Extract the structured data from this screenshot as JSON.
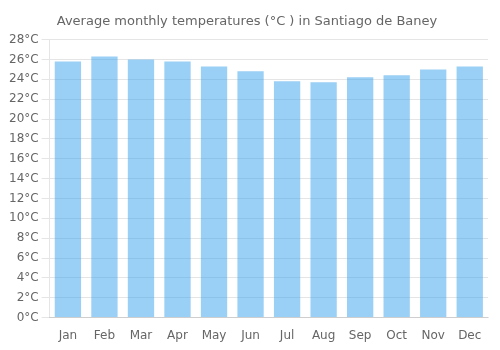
{
  "chart_data": {
    "type": "bar",
    "title": "Average monthly temperatures (°C ) in Santiago de Baney",
    "categories": [
      "Jan",
      "Feb",
      "Mar",
      "Apr",
      "May",
      "Jun",
      "Jul",
      "Aug",
      "Sep",
      "Oct",
      "Nov",
      "Dec"
    ],
    "values": [
      25.8,
      26.3,
      26.0,
      25.8,
      25.3,
      24.8,
      23.8,
      23.7,
      24.2,
      24.4,
      25.0,
      25.3
    ],
    "ylim": [
      0,
      28
    ],
    "yticks": [
      {
        "value": 0,
        "label": "0°C"
      },
      {
        "value": 2,
        "label": "2°C"
      },
      {
        "value": 4,
        "label": "4°C"
      },
      {
        "value": 6,
        "label": "6°C"
      },
      {
        "value": 8,
        "label": "8°C"
      },
      {
        "value": 10,
        "label": "10°C"
      },
      {
        "value": 12,
        "label": "12°C"
      },
      {
        "value": 14,
        "label": "14°C"
      },
      {
        "value": 16,
        "label": "16°C"
      },
      {
        "value": 18,
        "label": "18°C"
      },
      {
        "value": 20,
        "label": "20°C"
      },
      {
        "value": 22,
        "label": "22°C"
      },
      {
        "value": 24,
        "label": "24°C"
      },
      {
        "value": 26,
        "label": "26°C"
      },
      {
        "value": 28,
        "label": "28°C"
      }
    ],
    "grid": true
  }
}
